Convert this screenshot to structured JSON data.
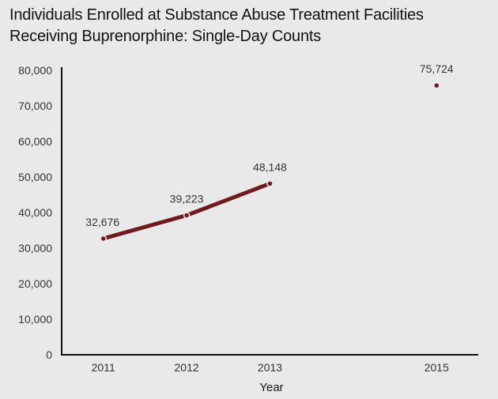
{
  "chart_data": {
    "type": "line",
    "title_line1": "Individuals Enrolled at Substance Abuse Treatment Facilities",
    "title_line2": "Receiving Buprenorphine: Single-Day Counts",
    "xlabel": "Year",
    "ylabel": "",
    "x": [
      2011,
      2012,
      2013,
      2015
    ],
    "x_tick_labels": [
      "2011",
      "2012",
      "2013",
      "2015"
    ],
    "values": [
      32676,
      39223,
      48148,
      75724
    ],
    "data_labels": [
      "32,676",
      "39,223",
      "48,148",
      "75,724"
    ],
    "connected_segments": [
      [
        0,
        1
      ],
      [
        1,
        2
      ]
    ],
    "xlim": [
      2010.5,
      2015.5
    ],
    "ylim": [
      0,
      80000
    ],
    "y_ticks": [
      0,
      10000,
      20000,
      30000,
      40000,
      50000,
      60000,
      70000,
      80000
    ],
    "y_tick_labels": [
      "0",
      "10,000",
      "20,000",
      "30,000",
      "40,000",
      "50,000",
      "60,000",
      "70,000",
      "80,000"
    ],
    "grid": false,
    "legend": "none",
    "line_color": "#6e1a1f",
    "background": "#e9e9e9"
  }
}
